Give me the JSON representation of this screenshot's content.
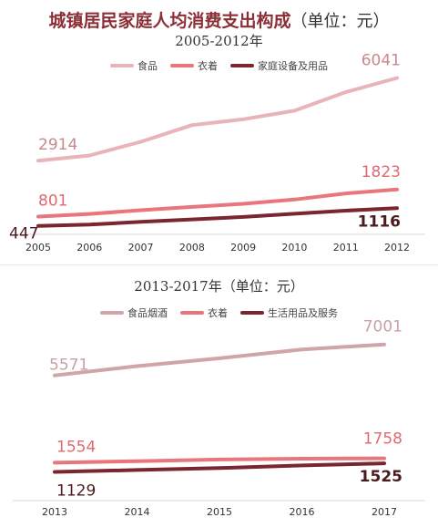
{
  "chart_data": [
    {
      "type": "line",
      "title": "城镇居民家庭人均消费支出构成",
      "title_unit": "（单位：元）",
      "subtitle": "2005-2012年",
      "categories": [
        "2005",
        "2006",
        "2007",
        "2008",
        "2009",
        "2010",
        "2011",
        "2012"
      ],
      "ylim": [
        300,
        6300
      ],
      "series": [
        {
          "name": "食品",
          "color": "#e8b4b8",
          "values": [
            2914,
            3111,
            3628,
            4260,
            4479,
            4805,
            5506,
            6041
          ],
          "label_first": "2914",
          "label_last": "6041"
        },
        {
          "name": "衣着",
          "color": "#e8767c",
          "values": [
            801,
            901,
            1042,
            1165,
            1284,
            1444,
            1675,
            1823
          ],
          "label_first": "801",
          "label_last": "1823"
        },
        {
          "name": "家庭设备及用品",
          "color": "#7a2630",
          "values": [
            447,
            498,
            601,
            692,
            787,
            908,
            1023,
            1116
          ],
          "label_first": "447",
          "label_last": "1116"
        }
      ],
      "legend_position": "top"
    },
    {
      "type": "line",
      "title": "2013-2017年（单位：元）",
      "categories": [
        "2013",
        "2014",
        "2015",
        "2016",
        "2017"
      ],
      "ylim": [
        900,
        7700
      ],
      "series": [
        {
          "name": "食品烟酒",
          "color": "#cfa5a7",
          "values": [
            5571,
            6000,
            6360,
            6762,
            7001
          ],
          "label_first": "5571",
          "label_last": "7001"
        },
        {
          "name": "衣着",
          "color": "#e8767c",
          "values": [
            1554,
            1627,
            1701,
            1739,
            1758
          ],
          "label_first": "1554",
          "label_last": "1758"
        },
        {
          "name": "生活用品及服务",
          "color": "#7a2630",
          "values": [
            1129,
            1217,
            1306,
            1427,
            1525
          ],
          "label_first": "1129",
          "label_last": "1525"
        }
      ],
      "legend_position": "top"
    }
  ]
}
